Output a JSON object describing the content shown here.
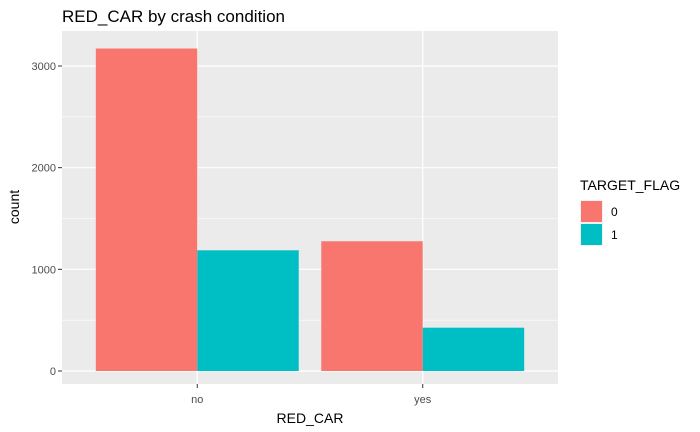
{
  "chart_data": {
    "type": "bar",
    "title": "RED_CAR by crash condition",
    "xlabel": "RED_CAR",
    "ylabel": "count",
    "categories": [
      "no",
      "yes"
    ],
    "series": [
      {
        "name": "0",
        "values": [
          3172,
          1276
        ],
        "color": "#f8766d"
      },
      {
        "name": "1",
        "values": [
          1187,
          426
        ],
        "color": "#00bfc4"
      }
    ],
    "ylim": [
      0,
      3200
    ],
    "yticks": [
      0,
      1000,
      2000,
      3000
    ],
    "ytick_labels": [
      "0",
      "1000",
      "2000",
      "3000"
    ],
    "grid": true,
    "legend": {
      "title": "TARGET_FLAG",
      "placement": "right"
    }
  }
}
